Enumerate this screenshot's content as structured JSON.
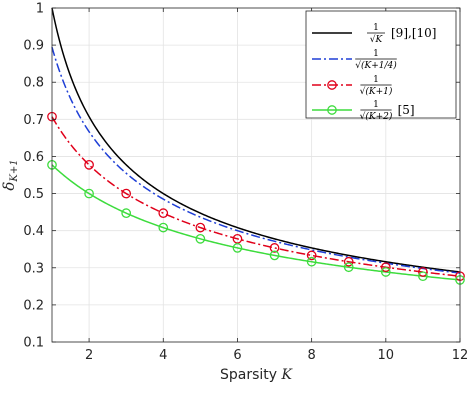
{
  "chart_data": {
    "type": "line",
    "xlabel": "Sparsity",
    "xlabel_var": "K",
    "ylabel_main": "δ",
    "ylabel_sub": "K+1",
    "xlim": [
      1,
      12
    ],
    "ylim": [
      0.1,
      1
    ],
    "xticks": [
      2,
      4,
      6,
      8,
      10,
      12
    ],
    "yticks": [
      0.1,
      0.2,
      0.3,
      0.4,
      0.5,
      0.6,
      0.7,
      0.8,
      0.9,
      1
    ],
    "grid": true,
    "legend_position": "top-right",
    "series": [
      {
        "name": "1/√K [9],[10]",
        "formula": "1/sqrt(K)",
        "legend_num": "1",
        "legend_den": "√K",
        "legend_ref": "[9],[10]",
        "color": "#000000",
        "style": "solid",
        "marker": "none",
        "offset": 0
      },
      {
        "name": "1/√(K+1/4)",
        "formula": "1/sqrt(K+1/4)",
        "legend_num": "1",
        "legend_den": "√(K+1/4)",
        "legend_ref": "",
        "color": "#1f3fd6",
        "style": "dashdot",
        "marker": "none",
        "offset": 0.25
      },
      {
        "name": "1/√(K+1)",
        "formula": "1/sqrt(K+1)",
        "legend_num": "1",
        "legend_den": "√(K+1)",
        "legend_ref": "",
        "color": "#e0001a",
        "style": "dashdot",
        "marker": "circle",
        "offset": 1
      },
      {
        "name": "1/√(K+2) [5]",
        "formula": "1/sqrt(K+2)",
        "legend_num": "1",
        "legend_den": "√(K+2)",
        "legend_ref": "[5]",
        "color": "#3ddc3d",
        "style": "solid",
        "marker": "circle",
        "offset": 2
      }
    ],
    "marker_x": [
      1,
      2,
      3,
      4,
      5,
      6,
      7,
      8,
      9,
      10,
      11,
      12
    ]
  }
}
